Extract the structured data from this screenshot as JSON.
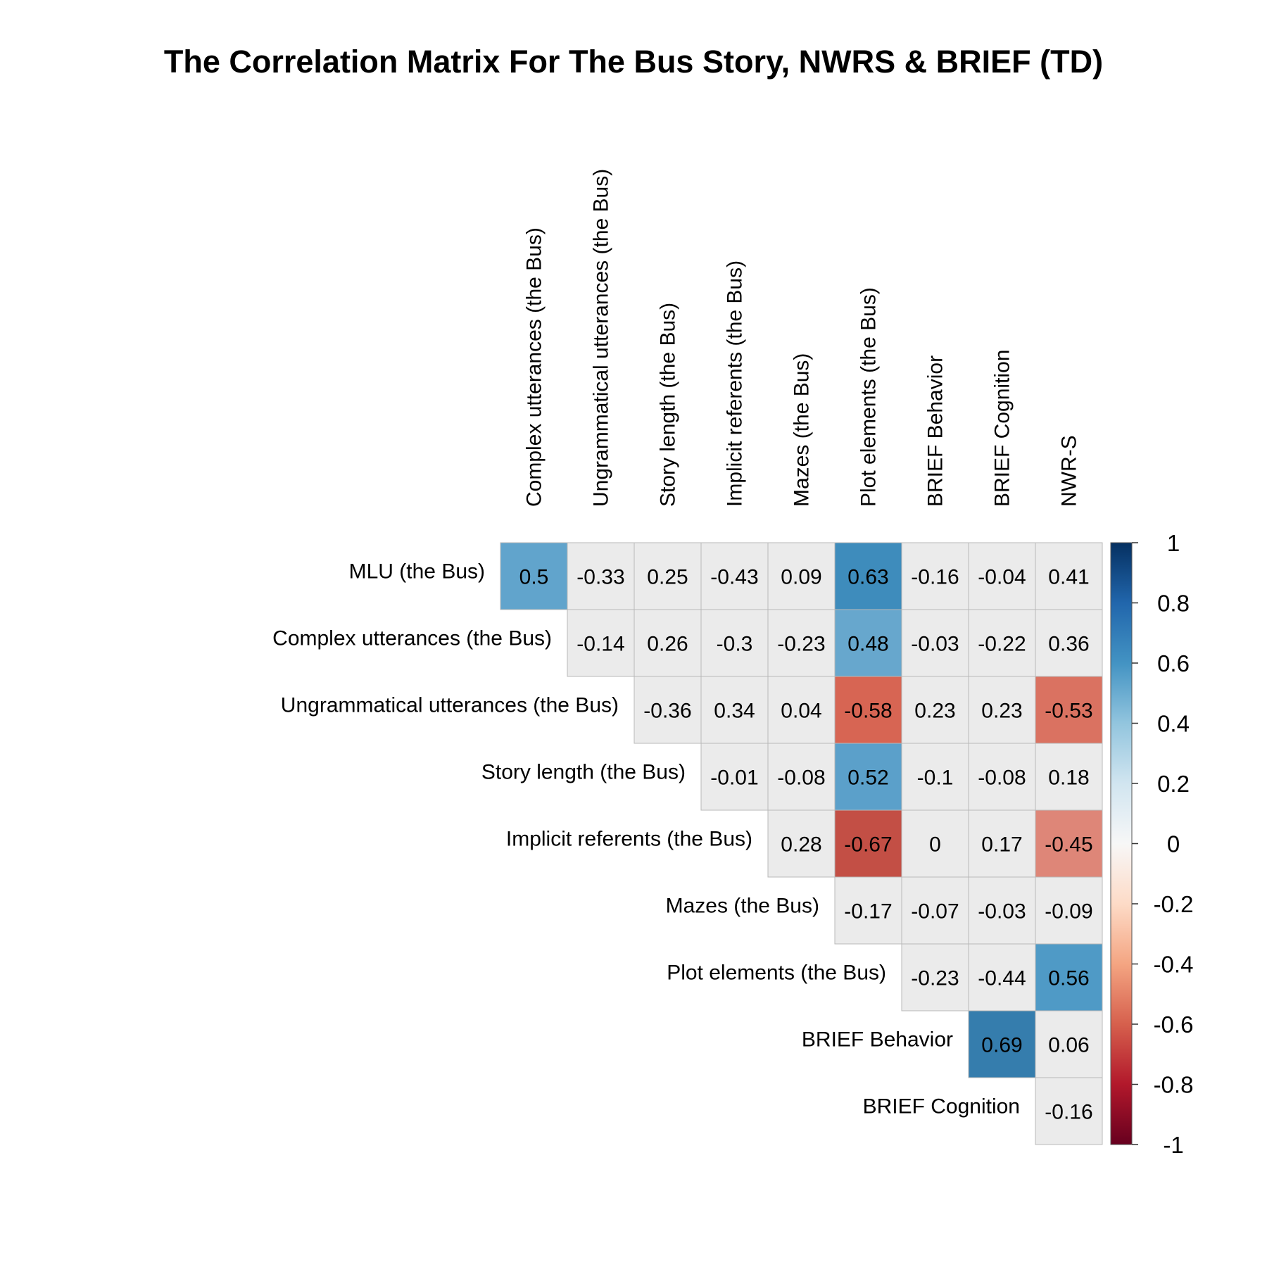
{
  "chart_data": {
    "type": "heatmap",
    "title": "The Correlation Matrix For The Bus Story, NWRS & BRIEF (TD)",
    "columns": [
      "Complex utterances (the Bus)",
      "Ungrammatical utterances (the Bus)",
      "Story length (the Bus)",
      "Implicit referents (the Bus)",
      "Mazes (the Bus)",
      "Plot elements (the Bus)",
      "BRIEF Behavior",
      "BRIEF Cognition",
      "NWR-S"
    ],
    "rows": [
      {
        "label": "MLU (the Bus)",
        "values": [
          0.5,
          -0.33,
          0.25,
          -0.43,
          0.09,
          0.63,
          -0.16,
          -0.04,
          0.41
        ]
      },
      {
        "label": "Complex utterances (the Bus)",
        "values": [
          null,
          -0.14,
          0.26,
          -0.3,
          -0.23,
          0.48,
          -0.03,
          -0.22,
          0.36
        ]
      },
      {
        "label": "Ungrammatical utterances (the Bus)",
        "values": [
          null,
          null,
          -0.36,
          0.34,
          0.04,
          -0.58,
          0.23,
          0.23,
          -0.53
        ]
      },
      {
        "label": "Story length (the Bus)",
        "values": [
          null,
          null,
          null,
          -0.01,
          -0.08,
          0.52,
          -0.1,
          -0.08,
          0.18
        ]
      },
      {
        "label": "Implicit referents (the Bus)",
        "values": [
          null,
          null,
          null,
          null,
          0.28,
          -0.67,
          0,
          0.17,
          -0.45
        ]
      },
      {
        "label": "Mazes (the Bus)",
        "values": [
          null,
          null,
          null,
          null,
          null,
          -0.17,
          -0.07,
          -0.03,
          -0.09
        ]
      },
      {
        "label": "Plot elements (the Bus)",
        "values": [
          null,
          null,
          null,
          null,
          null,
          null,
          -0.23,
          -0.44,
          0.56
        ]
      },
      {
        "label": "BRIEF Behavior",
        "values": [
          null,
          null,
          null,
          null,
          null,
          null,
          null,
          0.69,
          0.06
        ]
      },
      {
        "label": "BRIEF Cognition",
        "values": [
          null,
          null,
          null,
          null,
          null,
          null,
          null,
          null,
          -0.16
        ]
      }
    ],
    "legend": {
      "ticks": [
        "1",
        "0.8",
        "0.6",
        "0.4",
        "0.2",
        "0",
        "-0.2",
        "-0.4",
        "-0.6",
        "-0.8",
        "-1"
      ],
      "range": [
        -1,
        1
      ],
      "placement": "right"
    },
    "significance_highlight": "cells with |r| below about 0.45 are drawn in neutral grey",
    "colors": {
      "neg_dark": "#67001f",
      "neg_mid": "#d6604d",
      "neutral": "#f7f7f7",
      "pos_mid": "#4393c3",
      "pos_dark": "#053061",
      "insignificant": "#ebebeb",
      "cell_border": "#b8b8b8"
    }
  }
}
